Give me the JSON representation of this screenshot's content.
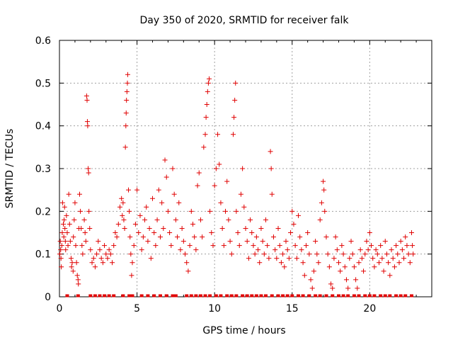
{
  "chart_data": {
    "type": "scatter",
    "title": "Day 350 of 2020, SRMTID for receiver falk",
    "xlabel": "GPS time / hours",
    "ylabel": "SRMTID / TECUs",
    "xlim": [
      0,
      24
    ],
    "ylim": [
      0,
      0.6
    ],
    "xticks": [
      0,
      5,
      10,
      15,
      20
    ],
    "xtick_labels": [
      "0",
      "5",
      "10",
      "15",
      "20"
    ],
    "yticks": [
      0,
      0.1,
      0.2,
      0.3,
      0.4,
      0.5,
      0.6
    ],
    "ytick_labels": [
      "0",
      "0.1",
      "0.2",
      "0.3",
      "0.4",
      "0.5",
      "0.6"
    ],
    "grid": true,
    "marker": "+",
    "color": "#e00000",
    "series": [
      {
        "name": "SRMTID",
        "points": [
          [
            0.02,
            0.1
          ],
          [
            0.05,
            0.13
          ],
          [
            0.08,
            0.11
          ],
          [
            0.1,
            0.09
          ],
          [
            0.12,
            0.07
          ],
          [
            0.15,
            0.12
          ],
          [
            0.18,
            0.15
          ],
          [
            0.2,
            0.22
          ],
          [
            0.25,
            0.17
          ],
          [
            0.28,
            0.14
          ],
          [
            0.3,
            0.18
          ],
          [
            0.33,
            0.21
          ],
          [
            0.35,
            0.16
          ],
          [
            0.38,
            0.13
          ],
          [
            0.4,
            0.11
          ],
          [
            0.45,
            0.19
          ],
          [
            0.5,
            0.15
          ],
          [
            0.55,
            0.12
          ],
          [
            0.6,
            0.24
          ],
          [
            0.65,
            0.17
          ],
          [
            0.7,
            0.13
          ],
          [
            0.75,
            0.09
          ],
          [
            0.78,
            0.07
          ],
          [
            0.82,
            0.08
          ],
          [
            0.88,
            0.06
          ],
          [
            0.9,
            0.14
          ],
          [
            0.95,
            0.18
          ],
          [
            1.0,
            0.22
          ],
          [
            1.05,
            0.12
          ],
          [
            1.1,
            0.08
          ],
          [
            1.15,
            0.05
          ],
          [
            1.2,
            0.04
          ],
          [
            1.22,
            0.03
          ],
          [
            1.25,
            0.16
          ],
          [
            1.3,
            0.24
          ],
          [
            1.35,
            0.2
          ],
          [
            1.4,
            0.16
          ],
          [
            1.45,
            0.12
          ],
          [
            1.5,
            0.1
          ],
          [
            1.6,
            0.18
          ],
          [
            1.65,
            0.15
          ],
          [
            1.7,
            0.13
          ],
          [
            1.75,
            0.47
          ],
          [
            1.78,
            0.46
          ],
          [
            1.8,
            0.41
          ],
          [
            1.82,
            0.4
          ],
          [
            1.85,
            0.3
          ],
          [
            1.88,
            0.29
          ],
          [
            1.9,
            0.2
          ],
          [
            1.95,
            0.16
          ],
          [
            2.0,
            0.11
          ],
          [
            2.1,
            0.08
          ],
          [
            2.2,
            0.09
          ],
          [
            2.3,
            0.07
          ],
          [
            2.4,
            0.1
          ],
          [
            2.5,
            0.13
          ],
          [
            2.6,
            0.11
          ],
          [
            2.7,
            0.09
          ],
          [
            2.8,
            0.08
          ],
          [
            2.9,
            0.12
          ],
          [
            3.0,
            0.1
          ],
          [
            3.1,
            0.09
          ],
          [
            3.2,
            0.11
          ],
          [
            3.3,
            0.1
          ],
          [
            3.4,
            0.08
          ],
          [
            3.5,
            0.12
          ],
          [
            3.6,
            0.15
          ],
          [
            3.7,
            0.14
          ],
          [
            3.8,
            0.17
          ],
          [
            3.9,
            0.21
          ],
          [
            4.0,
            0.23
          ],
          [
            4.05,
            0.19
          ],
          [
            4.1,
            0.22
          ],
          [
            4.15,
            0.18
          ],
          [
            4.2,
            0.16
          ],
          [
            4.25,
            0.35
          ],
          [
            4.28,
            0.4
          ],
          [
            4.3,
            0.43
          ],
          [
            4.32,
            0.46
          ],
          [
            4.35,
            0.48
          ],
          [
            4.38,
            0.5
          ],
          [
            4.4,
            0.52
          ],
          [
            4.45,
            0.25
          ],
          [
            4.5,
            0.2
          ],
          [
            4.55,
            0.14
          ],
          [
            4.6,
            0.1
          ],
          [
            4.65,
            0.05
          ],
          [
            4.7,
            0.08
          ],
          [
            4.8,
            0.12
          ],
          [
            4.9,
            0.17
          ],
          [
            5.0,
            0.25
          ],
          [
            5.1,
            0.15
          ],
          [
            5.2,
            0.19
          ],
          [
            5.3,
            0.11
          ],
          [
            5.4,
            0.14
          ],
          [
            5.5,
            0.18
          ],
          [
            5.6,
            0.21
          ],
          [
            5.7,
            0.13
          ],
          [
            5.8,
            0.16
          ],
          [
            5.9,
            0.09
          ],
          [
            6.0,
            0.23
          ],
          [
            6.1,
            0.15
          ],
          [
            6.2,
            0.12
          ],
          [
            6.3,
            0.18
          ],
          [
            6.4,
            0.25
          ],
          [
            6.5,
            0.14
          ],
          [
            6.6,
            0.22
          ],
          [
            6.7,
            0.16
          ],
          [
            6.8,
            0.32
          ],
          [
            6.9,
            0.28
          ],
          [
            7.0,
            0.2
          ],
          [
            7.1,
            0.15
          ],
          [
            7.2,
            0.12
          ],
          [
            7.3,
            0.3
          ],
          [
            7.4,
            0.24
          ],
          [
            7.5,
            0.18
          ],
          [
            7.6,
            0.14
          ],
          [
            7.7,
            0.22
          ],
          [
            7.8,
            0.11
          ],
          [
            7.9,
            0.16
          ],
          [
            8.0,
            0.13
          ],
          [
            8.1,
            0.1
          ],
          [
            8.2,
            0.08
          ],
          [
            8.3,
            0.06
          ],
          [
            8.4,
            0.12
          ],
          [
            8.5,
            0.2
          ],
          [
            8.6,
            0.17
          ],
          [
            8.7,
            0.14
          ],
          [
            8.8,
            0.11
          ],
          [
            8.9,
            0.26
          ],
          [
            9.0,
            0.29
          ],
          [
            9.1,
            0.18
          ],
          [
            9.2,
            0.14
          ],
          [
            9.3,
            0.35
          ],
          [
            9.4,
            0.38
          ],
          [
            9.45,
            0.42
          ],
          [
            9.5,
            0.45
          ],
          [
            9.55,
            0.48
          ],
          [
            9.6,
            0.5
          ],
          [
            9.65,
            0.51
          ],
          [
            9.7,
            0.2
          ],
          [
            9.8,
            0.15
          ],
          [
            9.9,
            0.12
          ],
          [
            10.0,
            0.26
          ],
          [
            10.1,
            0.3
          ],
          [
            10.2,
            0.38
          ],
          [
            10.3,
            0.31
          ],
          [
            10.4,
            0.22
          ],
          [
            10.5,
            0.16
          ],
          [
            10.6,
            0.12
          ],
          [
            10.7,
            0.2
          ],
          [
            10.8,
            0.27
          ],
          [
            10.9,
            0.18
          ],
          [
            11.0,
            0.13
          ],
          [
            11.1,
            0.1
          ],
          [
            11.2,
            0.38
          ],
          [
            11.25,
            0.42
          ],
          [
            11.3,
            0.46
          ],
          [
            11.35,
            0.5
          ],
          [
            11.4,
            0.2
          ],
          [
            11.5,
            0.15
          ],
          [
            11.6,
            0.12
          ],
          [
            11.7,
            0.24
          ],
          [
            11.8,
            0.3
          ],
          [
            11.9,
            0.21
          ],
          [
            12.0,
            0.16
          ],
          [
            12.1,
            0.13
          ],
          [
            12.2,
            0.09
          ],
          [
            12.3,
            0.18
          ],
          [
            12.4,
            0.15
          ],
          [
            12.5,
            0.12
          ],
          [
            12.6,
            0.1
          ],
          [
            12.7,
            0.14
          ],
          [
            12.8,
            0.11
          ],
          [
            12.9,
            0.08
          ],
          [
            13.0,
            0.16
          ],
          [
            13.1,
            0.13
          ],
          [
            13.2,
            0.1
          ],
          [
            13.3,
            0.18
          ],
          [
            13.4,
            0.12
          ],
          [
            13.5,
            0.09
          ],
          [
            13.6,
            0.34
          ],
          [
            13.65,
            0.3
          ],
          [
            13.7,
            0.24
          ],
          [
            13.8,
            0.14
          ],
          [
            13.9,
            0.11
          ],
          [
            14.0,
            0.09
          ],
          [
            14.1,
            0.16
          ],
          [
            14.2,
            0.12
          ],
          [
            14.3,
            0.08
          ],
          [
            14.4,
            0.1
          ],
          [
            14.5,
            0.07
          ],
          [
            14.6,
            0.13
          ],
          [
            14.7,
            0.11
          ],
          [
            14.8,
            0.09
          ],
          [
            14.9,
            0.15
          ],
          [
            15.0,
            0.2
          ],
          [
            15.1,
            0.17
          ],
          [
            15.2,
            0.12
          ],
          [
            15.3,
            0.09
          ],
          [
            15.4,
            0.19
          ],
          [
            15.5,
            0.14
          ],
          [
            15.6,
            0.11
          ],
          [
            15.7,
            0.08
          ],
          [
            15.8,
            0.05
          ],
          [
            15.9,
            0.12
          ],
          [
            16.0,
            0.15
          ],
          [
            16.1,
            0.1
          ],
          [
            16.2,
            0.04
          ],
          [
            16.3,
            0.02
          ],
          [
            16.4,
            0.06
          ],
          [
            16.5,
            0.13
          ],
          [
            16.6,
            0.1
          ],
          [
            16.7,
            0.08
          ],
          [
            16.8,
            0.18
          ],
          [
            16.9,
            0.22
          ],
          [
            17.0,
            0.27
          ],
          [
            17.05,
            0.25
          ],
          [
            17.1,
            0.2
          ],
          [
            17.2,
            0.14
          ],
          [
            17.3,
            0.1
          ],
          [
            17.4,
            0.07
          ],
          [
            17.5,
            0.03
          ],
          [
            17.6,
            0.02
          ],
          [
            17.7,
            0.09
          ],
          [
            17.8,
            0.14
          ],
          [
            17.9,
            0.11
          ],
          [
            18.0,
            0.08
          ],
          [
            18.1,
            0.06
          ],
          [
            18.2,
            0.12
          ],
          [
            18.3,
            0.1
          ],
          [
            18.4,
            0.07
          ],
          [
            18.5,
            0.04
          ],
          [
            18.6,
            0.02
          ],
          [
            18.7,
            0.09
          ],
          [
            18.8,
            0.13
          ],
          [
            18.9,
            0.1
          ],
          [
            19.0,
            0.07
          ],
          [
            19.1,
            0.04
          ],
          [
            19.2,
            0.02
          ],
          [
            19.3,
            0.08
          ],
          [
            19.4,
            0.11
          ],
          [
            19.5,
            0.09
          ],
          [
            19.6,
            0.06
          ],
          [
            19.7,
            0.1
          ],
          [
            19.8,
            0.13
          ],
          [
            19.9,
            0.11
          ],
          [
            20.0,
            0.15
          ],
          [
            20.1,
            0.12
          ],
          [
            20.2,
            0.09
          ],
          [
            20.3,
            0.07
          ],
          [
            20.4,
            0.11
          ],
          [
            20.5,
            0.1
          ],
          [
            20.6,
            0.08
          ],
          [
            20.7,
            0.12
          ],
          [
            20.8,
            0.09
          ],
          [
            20.9,
            0.06
          ],
          [
            21.0,
            0.13
          ],
          [
            21.1,
            0.1
          ],
          [
            21.2,
            0.08
          ],
          [
            21.3,
            0.05
          ],
          [
            21.4,
            0.11
          ],
          [
            21.5,
            0.09
          ],
          [
            21.6,
            0.07
          ],
          [
            21.7,
            0.12
          ],
          [
            21.8,
            0.1
          ],
          [
            21.9,
            0.08
          ],
          [
            22.0,
            0.13
          ],
          [
            22.1,
            0.11
          ],
          [
            22.2,
            0.09
          ],
          [
            22.3,
            0.14
          ],
          [
            22.4,
            0.12
          ],
          [
            22.5,
            0.1
          ],
          [
            22.6,
            0.08
          ],
          [
            22.7,
            0.15
          ],
          [
            22.75,
            0.12
          ],
          [
            22.8,
            0.1
          ]
        ],
        "zero_markers_x": [
          0.5,
          1.2,
          2.0,
          2.3,
          2.6,
          2.9,
          3.2,
          3.5,
          4.1,
          4.5,
          4.7,
          5.3,
          5.7,
          6.1,
          6.5,
          6.9,
          7.3,
          7.5,
          8.2,
          8.5,
          8.8,
          9.1,
          9.4,
          9.7,
          10.1,
          10.4,
          10.8,
          11.1,
          11.4,
          11.8,
          12.1,
          12.4,
          12.7,
          13.0,
          13.3,
          13.7,
          14.1,
          14.4,
          14.7,
          15.0,
          15.4,
          15.7,
          16.1,
          16.5,
          16.8,
          17.2,
          17.6,
          18.0,
          18.3,
          18.6,
          19.0,
          19.3,
          19.7,
          20.0,
          20.3,
          20.7,
          21.0,
          21.3,
          21.7,
          22.0,
          22.3,
          22.7
        ]
      }
    ]
  }
}
